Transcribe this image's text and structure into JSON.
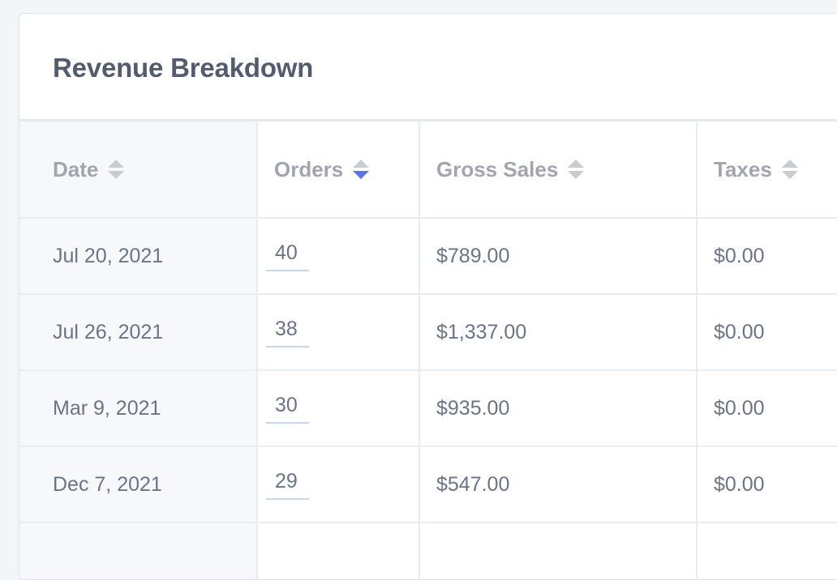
{
  "card": {
    "title": "Revenue Breakdown"
  },
  "table": {
    "columns": [
      {
        "label": "Date",
        "sort": "none"
      },
      {
        "label": "Orders",
        "sort": "descending"
      },
      {
        "label": "Gross Sales",
        "sort": "none"
      },
      {
        "label": "Taxes",
        "sort": "none"
      }
    ],
    "rows": [
      {
        "date": "Jul 20, 2021",
        "orders": "40",
        "gross": "$789.00",
        "taxes": "$0.00"
      },
      {
        "date": "Jul 26, 2021",
        "orders": "38",
        "gross": "$1,337.00",
        "taxes": "$0.00"
      },
      {
        "date": "Mar 9, 2021",
        "orders": "30",
        "gross": "$935.00",
        "taxes": "$0.00"
      },
      {
        "date": "Dec 7, 2021",
        "orders": "29",
        "gross": "$547.00",
        "taxes": "$0.00"
      }
    ]
  },
  "icons": {
    "sort": "sort-icon"
  },
  "colors": {
    "active_sort": "#5b72ea",
    "inactive_sort": "#c7ccd2",
    "title": "#525c6e"
  }
}
